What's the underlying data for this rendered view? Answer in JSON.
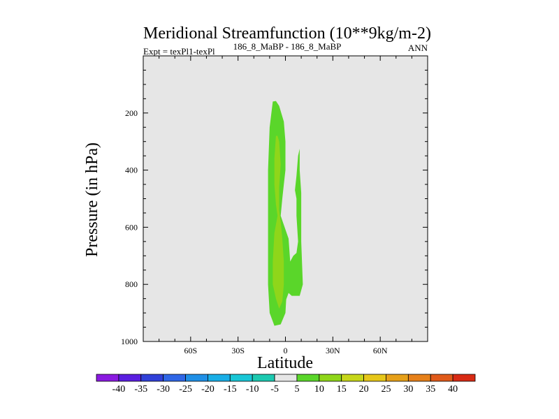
{
  "chart_data": {
    "type": "contour",
    "title": "Meridional Streamfunction (10**9kg/m-2)",
    "subtitle_left": "Expt = texPl1-texPl",
    "subtitle_center": "186_8_MaBP - 186_8_MaBP",
    "subtitle_right": "ANN",
    "xlabel": "Latitude",
    "ylabel": "Pressure (in hPa)",
    "xlim": [
      -90,
      90
    ],
    "ylim": [
      1000,
      0
    ],
    "xticks": [
      {
        "value": -60,
        "label": "60S"
      },
      {
        "value": -30,
        "label": "30S"
      },
      {
        "value": 0,
        "label": "0"
      },
      {
        "value": 30,
        "label": "30N"
      },
      {
        "value": 60,
        "label": "60N"
      }
    ],
    "yticks": [
      {
        "value": 200,
        "label": "200"
      },
      {
        "value": 400,
        "label": "400"
      },
      {
        "value": 600,
        "label": "600"
      },
      {
        "value": 800,
        "label": "800"
      },
      {
        "value": 1000,
        "label": "1000"
      }
    ],
    "background_color": "#e6e6e6",
    "colorbar": {
      "labels": [
        "-40",
        "-35",
        "-30",
        "-25",
        "-20",
        "-15",
        "-10",
        "-5",
        "5",
        "10",
        "15",
        "20",
        "25",
        "30",
        "35",
        "40"
      ],
      "colors": [
        "#8a1ae0",
        "#5a1ee0",
        "#3040d8",
        "#2f66e6",
        "#1f8fe6",
        "#19aee6",
        "#19c6d6",
        "#1cc9b0",
        "#e6e6e6",
        "#5ad62a",
        "#8fd61a",
        "#c6d61a",
        "#e6c619",
        "#e6a019",
        "#e6801a",
        "#e05a1a",
        "#d82a14"
      ]
    },
    "contours": [
      {
        "level": 5,
        "color": "#5ad62a",
        "outline": [
          [
            -8,
            160
          ],
          [
            -10,
            250
          ],
          [
            -11,
            400
          ],
          [
            -11,
            600
          ],
          [
            -11,
            800
          ],
          [
            -10,
            900
          ],
          [
            -7,
            945
          ],
          [
            -3,
            940
          ],
          [
            0,
            900
          ],
          [
            1,
            800
          ],
          [
            1,
            700
          ],
          [
            -1,
            600
          ],
          [
            -3,
            560
          ],
          [
            -2,
            500
          ],
          [
            -1,
            450
          ],
          [
            0,
            400
          ],
          [
            0,
            300
          ],
          [
            -1,
            230
          ],
          [
            -4,
            175
          ],
          [
            -6,
            158
          ]
        ]
      },
      {
        "level": 5,
        "color": "#5ad62a",
        "outline": [
          [
            -3,
            560
          ],
          [
            2,
            640
          ],
          [
            3,
            720
          ],
          [
            5,
            700
          ],
          [
            7,
            690
          ],
          [
            8,
            650
          ],
          [
            7,
            560
          ],
          [
            7,
            500
          ],
          [
            6,
            470
          ],
          [
            7,
            420
          ],
          [
            8,
            350
          ],
          [
            9,
            325
          ],
          [
            9,
            400
          ],
          [
            10,
            480
          ],
          [
            10,
            650
          ],
          [
            11,
            800
          ],
          [
            9,
            840
          ],
          [
            4,
            840
          ],
          [
            2,
            830
          ],
          [
            0,
            860
          ],
          [
            -1,
            800
          ]
        ]
      },
      {
        "level": 10,
        "color": "#8fd61a",
        "outline": [
          [
            -6,
            280
          ],
          [
            -7,
            360
          ],
          [
            -7,
            450
          ],
          [
            -6,
            520
          ],
          [
            -5,
            560
          ],
          [
            -7,
            620
          ],
          [
            -8,
            720
          ],
          [
            -8,
            800
          ],
          [
            -6,
            850
          ],
          [
            -4,
            885
          ],
          [
            -2,
            860
          ],
          [
            -1,
            800
          ],
          [
            -1,
            720
          ],
          [
            -2,
            640
          ],
          [
            -3,
            580
          ],
          [
            -4,
            540
          ],
          [
            -4,
            460
          ],
          [
            -3,
            380
          ],
          [
            -4,
            300
          ],
          [
            -5,
            280
          ]
        ]
      }
    ]
  }
}
